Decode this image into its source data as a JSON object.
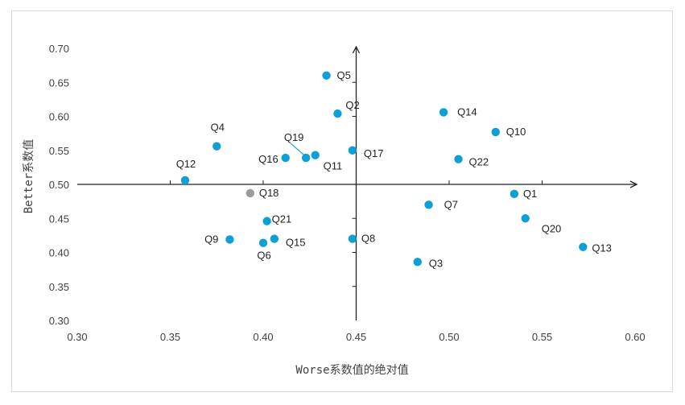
{
  "chart_data": {
    "type": "scatter",
    "xlabel": "Worse系数值的绝对值",
    "ylabel": "Better系数值",
    "xlim": [
      0.3,
      0.6
    ],
    "ylim": [
      0.3,
      0.7
    ],
    "x_ticks": [
      "0.30",
      "0.35",
      "0.40",
      "0.45",
      "0.50",
      "0.55",
      "0.60"
    ],
    "y_ticks": [
      "0.30",
      "0.35",
      "0.40",
      "0.45",
      "0.50",
      "0.55",
      "0.60",
      "0.65",
      "0.70"
    ],
    "crosshair": {
      "x": 0.45,
      "y": 0.5
    },
    "grid": false,
    "colors": {
      "point": "#0e9fd4",
      "highlight": "#9a9a9a",
      "axis": "#222222"
    },
    "points": [
      {
        "label": "Q1",
        "x": 0.535,
        "y": 0.486
      },
      {
        "label": "Q2",
        "x": 0.44,
        "y": 0.604
      },
      {
        "label": "Q3",
        "x": 0.483,
        "y": 0.386
      },
      {
        "label": "Q4",
        "x": 0.375,
        "y": 0.556
      },
      {
        "label": "Q5",
        "x": 0.434,
        "y": 0.66
      },
      {
        "label": "Q6",
        "x": 0.4,
        "y": 0.414
      },
      {
        "label": "Q7",
        "x": 0.489,
        "y": 0.47
      },
      {
        "label": "Q8",
        "x": 0.448,
        "y": 0.42
      },
      {
        "label": "Q9",
        "x": 0.382,
        "y": 0.419
      },
      {
        "label": "Q10",
        "x": 0.525,
        "y": 0.577
      },
      {
        "label": "Q11",
        "x": 0.428,
        "y": 0.543
      },
      {
        "label": "Q12",
        "x": 0.358,
        "y": 0.506
      },
      {
        "label": "Q13",
        "x": 0.572,
        "y": 0.408
      },
      {
        "label": "Q14",
        "x": 0.497,
        "y": 0.606
      },
      {
        "label": "Q15",
        "x": 0.406,
        "y": 0.42
      },
      {
        "label": "Q16",
        "x": 0.412,
        "y": 0.539
      },
      {
        "label": "Q17",
        "x": 0.448,
        "y": 0.55
      },
      {
        "label": "Q18",
        "x": 0.393,
        "y": 0.487,
        "highlight": true
      },
      {
        "label": "Q19",
        "x": 0.423,
        "y": 0.539
      },
      {
        "label": "Q20",
        "x": 0.541,
        "y": 0.45
      },
      {
        "label": "Q21",
        "x": 0.402,
        "y": 0.446
      },
      {
        "label": "Q22",
        "x": 0.505,
        "y": 0.537
      }
    ]
  }
}
